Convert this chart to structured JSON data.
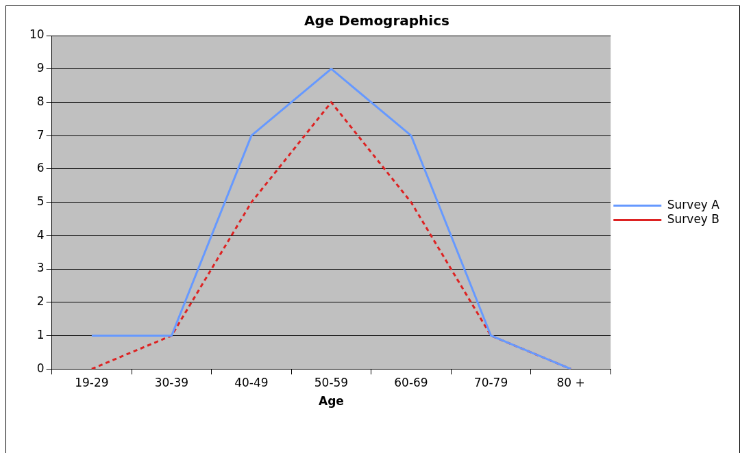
{
  "chart_data": {
    "type": "line",
    "title": "Age Demographics",
    "xlabel": "Age",
    "categories": [
      "19-29",
      "30-39",
      "40-49",
      "50-59",
      "60-69",
      "70-79",
      "80 +"
    ],
    "series": [
      {
        "name": "Survey A",
        "color": "#6699ff",
        "values": [
          1,
          1,
          7,
          9,
          7,
          1,
          0
        ],
        "line_style": "solid"
      },
      {
        "name": "Survey B",
        "color": "#dd2222",
        "values": [
          0,
          1,
          5,
          8,
          5,
          1,
          0
        ],
        "line_style": "dashed"
      }
    ],
    "ylim": [
      0,
      10
    ],
    "yticks": [
      0,
      1,
      2,
      3,
      4,
      5,
      6,
      7,
      8,
      9,
      10
    ],
    "grid": "y",
    "legend": "right",
    "marker": "none"
  }
}
